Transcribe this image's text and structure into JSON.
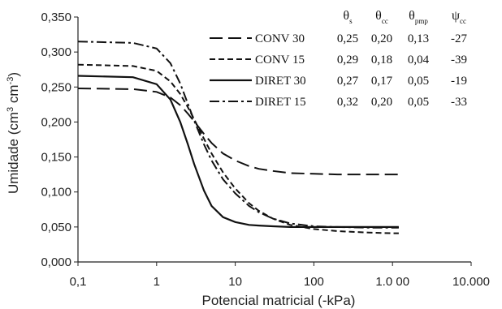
{
  "chart_data": {
    "type": "line",
    "title": "",
    "xlabel": "Potencial matricial (-kPa)",
    "ylabel": "Umidade (cm³ cm⁻³)",
    "x_scale": "log",
    "xlim": [
      0.1,
      10000
    ],
    "ylim": [
      0,
      0.35
    ],
    "x_ticks": [
      0.1,
      1,
      10,
      100,
      1000,
      10000
    ],
    "x_tick_labels": [
      "0,1",
      "1",
      "10",
      "100",
      "1.0 00",
      "10.000"
    ],
    "y_ticks": [
      0,
      0.05,
      0.1,
      0.15,
      0.2,
      0.25,
      0.3,
      0.35
    ],
    "y_tick_labels": [
      "0,000",
      "0,050",
      "0,100",
      "0,150",
      "0,200",
      "0,250",
      "0,300",
      "0,350"
    ],
    "grid": false,
    "legend_position": "top-right",
    "series": [
      {
        "name": "CONV 30",
        "dash": "long-dash",
        "x": [
          0.1,
          0.5,
          1,
          1.5,
          2,
          2.5,
          3,
          4,
          5,
          7,
          10,
          15,
          20,
          30,
          50,
          100,
          200,
          500,
          1000,
          1200
        ],
        "y": [
          0.248,
          0.247,
          0.243,
          0.235,
          0.224,
          0.212,
          0.201,
          0.183,
          0.17,
          0.155,
          0.145,
          0.137,
          0.133,
          0.13,
          0.127,
          0.126,
          0.125,
          0.125,
          0.125,
          0.125
        ]
      },
      {
        "name": "CONV 15",
        "dash": "short-dash",
        "x": [
          0.1,
          0.5,
          1,
          1.5,
          2,
          2.5,
          3,
          4,
          5,
          7,
          10,
          15,
          20,
          30,
          50,
          100,
          200,
          500,
          1000,
          1200
        ],
        "y": [
          0.282,
          0.28,
          0.273,
          0.258,
          0.24,
          0.221,
          0.204,
          0.176,
          0.155,
          0.128,
          0.105,
          0.084,
          0.073,
          0.062,
          0.053,
          0.047,
          0.044,
          0.042,
          0.041,
          0.041
        ]
      },
      {
        "name": "DIRET 30",
        "dash": "solid",
        "x": [
          0.1,
          0.5,
          1,
          1.5,
          2,
          2.5,
          3,
          4,
          5,
          7,
          10,
          15,
          20,
          30,
          50,
          100,
          200,
          500,
          1000,
          1200
        ],
        "y": [
          0.266,
          0.264,
          0.254,
          0.232,
          0.2,
          0.168,
          0.14,
          0.102,
          0.08,
          0.064,
          0.057,
          0.053,
          0.052,
          0.051,
          0.05,
          0.05,
          0.05,
          0.05,
          0.05,
          0.05
        ]
      },
      {
        "name": "DIRET 15",
        "dash": "dash-dot",
        "x": [
          0.1,
          0.5,
          1,
          1.5,
          2,
          2.5,
          3,
          4,
          5,
          7,
          10,
          15,
          20,
          30,
          50,
          100,
          200,
          500,
          1000,
          1200
        ],
        "y": [
          0.315,
          0.313,
          0.305,
          0.284,
          0.255,
          0.226,
          0.202,
          0.168,
          0.145,
          0.118,
          0.098,
          0.08,
          0.071,
          0.062,
          0.055,
          0.051,
          0.05,
          0.049,
          0.049,
          0.049
        ]
      }
    ],
    "parameter_table": {
      "headers": [
        {
          "symbol": "θ",
          "sub": "s"
        },
        {
          "symbol": "θ",
          "sub": "cc"
        },
        {
          "symbol": "θ",
          "sub": "pmp"
        },
        {
          "symbol": "ψ",
          "sub": "cc"
        }
      ],
      "rows": [
        [
          "0,25",
          "0,20",
          "0,13",
          "-27"
        ],
        [
          "0,29",
          "0,18",
          "0,04",
          "-39"
        ],
        [
          "0,27",
          "0,17",
          "0,05",
          "-19"
        ],
        [
          "0,32",
          "0,20",
          "0,05",
          "-33"
        ]
      ]
    }
  }
}
